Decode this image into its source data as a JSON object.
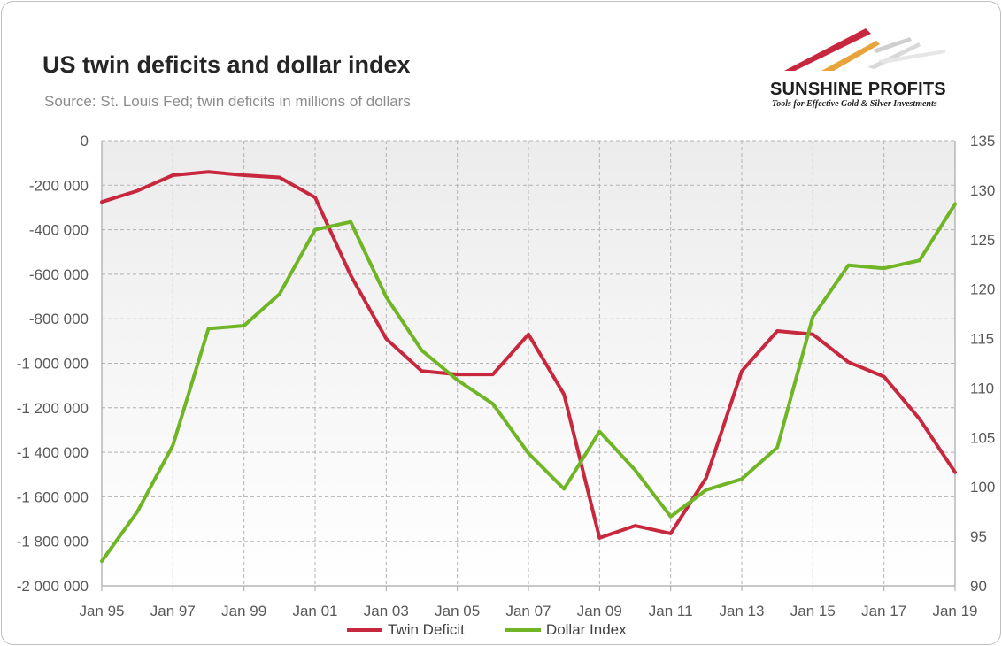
{
  "title": "US twin deficits and dollar index",
  "subtitle": "Source: St. Louis Fed; twin deficits in millions of dollars",
  "logo": {
    "name": "SUNSHINE PROFITS",
    "tagline": "Tools for Effective Gold & Silver Investments"
  },
  "colors": {
    "twin_deficit": "#c8283e",
    "dollar_index": "#6fb526",
    "grid": "#b3b3b3",
    "axis": "#a6a6a6"
  },
  "chart_data": {
    "type": "line",
    "title": "US twin deficits and dollar index",
    "subtitle": "Source: St. Louis Fed; twin deficits in millions of dollars",
    "x_ticks": [
      "Jan 95",
      "Jan 97",
      "Jan 99",
      "Jan 01",
      "Jan 03",
      "Jan 05",
      "Jan 07",
      "Jan 09",
      "Jan 11",
      "Jan 13",
      "Jan 15",
      "Jan 17",
      "Jan 19"
    ],
    "x": [
      1995,
      1996,
      1997,
      1998,
      1999,
      2000,
      2001,
      2002,
      2003,
      2004,
      2005,
      2006,
      2007,
      2008,
      2009,
      2010,
      2011,
      2012,
      2013,
      2014,
      2015,
      2016,
      2017,
      2018,
      2019
    ],
    "xlim": [
      1995,
      2019
    ],
    "y_left": {
      "range": [
        -2000000,
        0
      ],
      "ticks": [
        0,
        -200000,
        -400000,
        -600000,
        -800000,
        -1000000,
        -1200000,
        -1400000,
        -1600000,
        -1800000,
        -2000000
      ],
      "tick_labels": [
        "0",
        "-200 000",
        "-400 000",
        "-600 000",
        "-800 000",
        "-1 000 000",
        "-1 200 000",
        "-1 400 000",
        "-1 600 000",
        "-1 800 000",
        "-2 000 000"
      ]
    },
    "y_right": {
      "range": [
        90,
        135
      ],
      "ticks": [
        135,
        130,
        125,
        120,
        115,
        110,
        105,
        100,
        95,
        90
      ],
      "tick_labels": [
        "135",
        "130",
        "125",
        "120",
        "115",
        "110",
        "105",
        "100",
        "95",
        "90"
      ]
    },
    "grid": true,
    "legend_position": "bottom",
    "series": [
      {
        "name": "Twin Deficit",
        "axis": "left",
        "values": [
          -275000,
          -225000,
          -155000,
          -140000,
          -155000,
          -165000,
          -255000,
          -605000,
          -890000,
          -1035000,
          -1050000,
          -1050000,
          -870000,
          -1140000,
          -1785000,
          -1730000,
          -1765000,
          -1515000,
          -1035000,
          -855000,
          -870000,
          -995000,
          -1060000,
          -1250000,
          -1490000
        ]
      },
      {
        "name": "Dollar Index",
        "axis": "right",
        "values": [
          92.5,
          97.5,
          104.2,
          116.0,
          116.3,
          119.5,
          126.0,
          126.8,
          119.2,
          113.8,
          110.8,
          108.4,
          103.4,
          99.8,
          105.6,
          101.7,
          97.0,
          99.7,
          100.8,
          104.0,
          117.2,
          122.4,
          122.1,
          122.9,
          128.6
        ]
      }
    ]
  }
}
